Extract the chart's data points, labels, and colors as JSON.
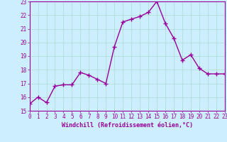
{
  "x": [
    0,
    1,
    2,
    3,
    4,
    5,
    6,
    7,
    8,
    9,
    10,
    11,
    12,
    13,
    14,
    15,
    16,
    17,
    18,
    19,
    20,
    21,
    22,
    23
  ],
  "y": [
    15.5,
    16.0,
    15.6,
    16.8,
    16.9,
    16.9,
    17.8,
    17.6,
    17.3,
    17.0,
    19.7,
    21.5,
    21.7,
    21.9,
    22.2,
    23.0,
    21.4,
    20.3,
    18.7,
    19.1,
    18.1,
    17.7,
    17.7,
    17.7
  ],
  "color": "#990099",
  "bg_color": "#cceeff",
  "grid_color": "#aaddcc",
  "xlabel": "Windchill (Refroidissement éolien,°C)",
  "ylim": [
    15,
    23
  ],
  "xlim": [
    0,
    23
  ],
  "yticks": [
    15,
    16,
    17,
    18,
    19,
    20,
    21,
    22,
    23
  ],
  "xticks": [
    0,
    1,
    2,
    3,
    4,
    5,
    6,
    7,
    8,
    9,
    10,
    11,
    12,
    13,
    14,
    15,
    16,
    17,
    18,
    19,
    20,
    21,
    22,
    23
  ],
  "marker": "+",
  "markersize": 4,
  "linewidth": 1.0,
  "label_fontsize": 6.0,
  "tick_fontsize": 5.5
}
